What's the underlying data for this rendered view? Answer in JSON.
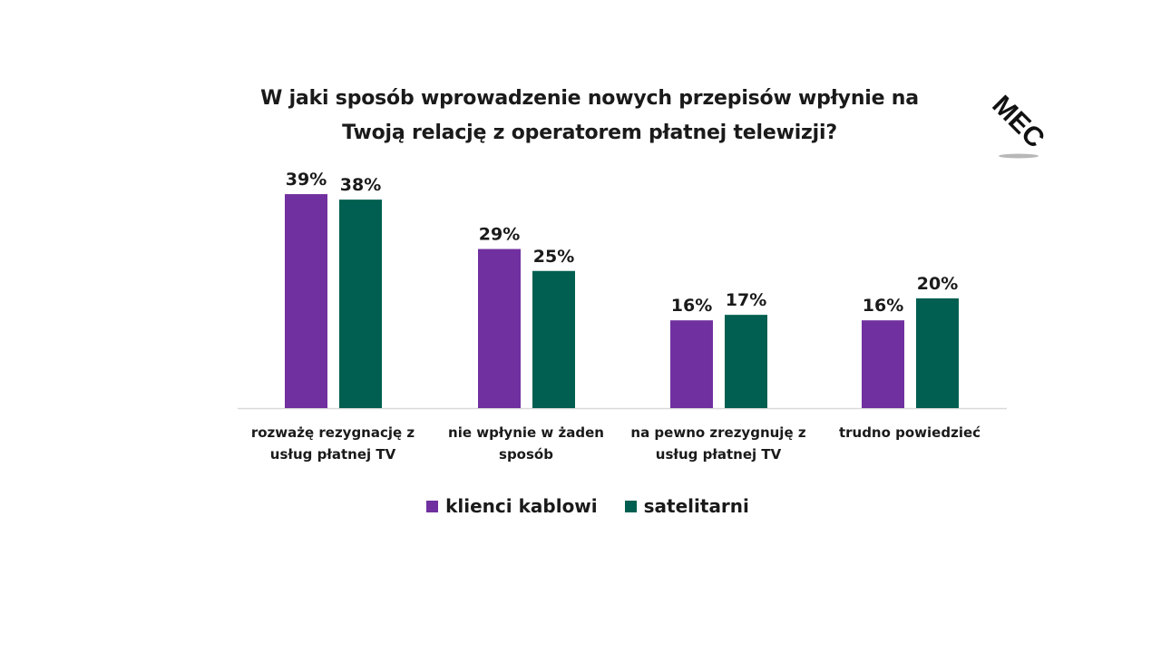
{
  "title_lines": [
    "W jaki sposób wprowadzenie nowych przepisów wpłynie na",
    "Twoją relację z operatorem płatnej telewizji?"
  ],
  "logo_text": "MEC",
  "colors": {
    "klienci": "#7030a0",
    "satelitarni": "#005f50",
    "axis": "#d9d9d9"
  },
  "chart_data": {
    "type": "bar",
    "title": "W jaki sposób wprowadzenie nowych przepisów wpłynie na Twoją relację z operatorem płatnej telewizji?",
    "categories": [
      [
        "rozważę rezygnację z",
        "usług płatnej TV"
      ],
      [
        "nie wpłynie w żaden",
        "sposób"
      ],
      [
        "na pewno zrezygnuję z",
        "usług płatnej TV"
      ],
      [
        "trudno powiedzieć"
      ]
    ],
    "series": [
      {
        "name": "klienci kablowi",
        "values": [
          39,
          29,
          16,
          16
        ],
        "labels": [
          "39%",
          "29%",
          "16%",
          "16%"
        ],
        "color": "#7030a0"
      },
      {
        "name": "satelitarni",
        "values": [
          38,
          25,
          17,
          20
        ],
        "labels": [
          "38%",
          "25%",
          "17%",
          "20%"
        ],
        "color": "#005f50"
      }
    ],
    "xlabel": "",
    "ylabel": "",
    "ylim": [
      0,
      40
    ],
    "grid": false,
    "legend": "bottom"
  }
}
